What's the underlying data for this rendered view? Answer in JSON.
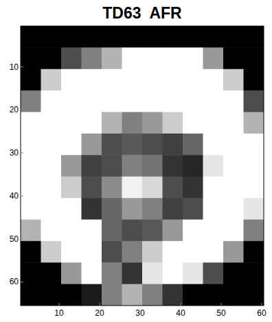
{
  "chart_data": {
    "type": "heatmap",
    "title": "TD63  AFR",
    "color": "gray",
    "xlim": [
      0.5,
      60.5
    ],
    "ylim": [
      0.5,
      65.5
    ],
    "xticks": [
      10,
      20,
      30,
      40,
      50,
      60
    ],
    "yticks": [
      10,
      20,
      30,
      40,
      50,
      60
    ],
    "cell_range": [
      0,
      1
    ],
    "cells": [
      [
        0,
        0,
        0,
        0,
        0,
        0,
        0,
        0,
        0,
        0,
        0,
        0
      ],
      [
        0,
        0,
        0.3,
        0.5,
        0.7,
        1,
        1,
        1,
        1,
        0.6,
        0,
        0
      ],
      [
        0,
        0.8,
        1,
        1,
        1,
        1,
        1,
        1,
        1,
        1,
        0.8,
        0
      ],
      [
        0.5,
        1,
        1,
        1,
        1,
        1,
        1,
        1,
        1,
        1,
        1,
        0.3
      ],
      [
        1,
        1,
        1,
        1,
        0.7,
        0.5,
        0.6,
        0.8,
        1,
        1,
        1,
        0.7
      ],
      [
        1,
        1,
        1,
        0.6,
        0.3,
        0.35,
        0.3,
        0.25,
        0.4,
        1,
        1,
        1
      ],
      [
        1,
        1,
        0.6,
        0.25,
        0.3,
        0.5,
        0.45,
        0.2,
        0.15,
        0.9,
        1,
        1
      ],
      [
        1,
        1,
        0.8,
        0.3,
        0.55,
        0.95,
        0.85,
        0.3,
        0.2,
        1,
        1,
        1
      ],
      [
        1,
        1,
        1,
        0.2,
        0.4,
        0.6,
        0.5,
        0.25,
        0.3,
        1,
        1,
        0.9
      ],
      [
        0.7,
        1,
        1,
        1,
        0.4,
        0.3,
        0.35,
        0.6,
        1,
        1,
        1,
        0.5
      ],
      [
        0,
        0.8,
        1,
        1,
        0.3,
        0.5,
        0.8,
        1,
        1,
        1,
        0.6,
        0
      ],
      [
        0,
        0,
        0.6,
        1,
        0.5,
        0.2,
        0.9,
        1,
        0.9,
        0.3,
        0,
        0
      ],
      [
        0,
        0,
        0,
        0.1,
        0.5,
        0.7,
        0.5,
        0.2,
        0,
        0,
        0,
        0
      ]
    ]
  }
}
